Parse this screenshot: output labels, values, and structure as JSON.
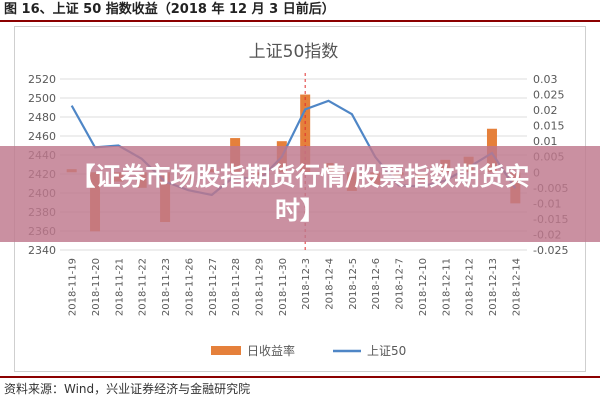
{
  "figure_caption": "图 16、上证 50 指数收益（2018 年 12 月 3 日前后）",
  "source_note": "资料来源：Wind，兴业证券经济与金融研究院",
  "banner_text": "【证券市场股指期货行情/股票指数期货实时】",
  "colors": {
    "bar": "#e5803b",
    "line": "#4f86c6",
    "marker": "#e03030",
    "banner": "#be788c"
  },
  "chart_data": {
    "type": "bar",
    "title": "上证50指数",
    "categories": [
      "2018-11-19",
      "2018-11-20",
      "2018-11-21",
      "2018-11-22",
      "2018-11-23",
      "2018-11-26",
      "2018-11-27",
      "2018-11-28",
      "2018-11-29",
      "2018-11-30",
      "2018-12-3",
      "2018-12-4",
      "2018-12-5",
      "2018-12-6",
      "2018-12-7",
      "2018-12-10",
      "2018-12-11",
      "2018-12-12",
      "2018-12-13",
      "2018-12-14"
    ],
    "y_left": {
      "ylim": [
        2340,
        2520
      ],
      "ticks": [
        2340,
        2360,
        2380,
        2400,
        2420,
        2440,
        2460,
        2480,
        2500,
        2520
      ]
    },
    "y_right": {
      "ylim": [
        -0.025,
        0.03
      ],
      "ticks": [
        -0.025,
        -0.02,
        -0.015,
        -0.01,
        -0.005,
        0,
        0.005,
        0.01,
        0.015,
        0.02,
        0.025,
        0.03
      ],
      "tick_labels": [
        "-0.025",
        "-0.02",
        "-0.015",
        "-0.01",
        "-0.005",
        "0",
        "0.005",
        "0.01",
        "0.015",
        "0.02",
        "0.025",
        "0.03"
      ]
    },
    "series": [
      {
        "name": "日收益率",
        "type": "bar",
        "axis": "right",
        "values": [
          0.001,
          -0.019,
          -0.003,
          -0.005,
          -0.016,
          -0.002,
          0.001,
          0.011,
          -0.001,
          0.01,
          0.025,
          0.003,
          -0.006,
          -0.004,
          -0.001,
          -0.003,
          0.004,
          0.005,
          0.014,
          -0.01
        ]
      },
      {
        "name": "上证50",
        "type": "line",
        "axis": "left",
        "values": [
          2492,
          2448,
          2450,
          2436,
          2412,
          2403,
          2398,
          2418,
          2413,
          2438,
          2488,
          2497,
          2483,
          2438,
          2408,
          2407,
          2413,
          2427,
          2442,
          2405
        ]
      }
    ],
    "marker_category": "2018-12-3",
    "legend": "bottom",
    "grid": true
  }
}
